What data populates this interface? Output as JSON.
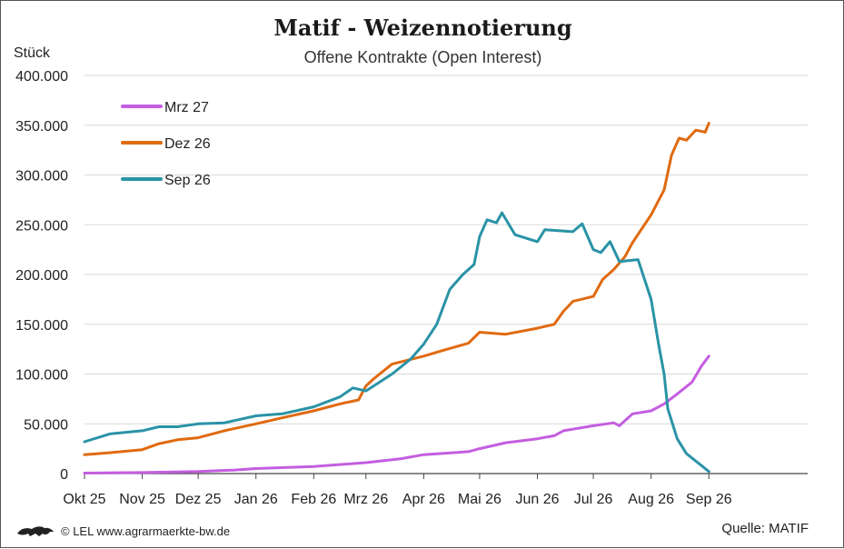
{
  "header": {
    "title": "Matif - Weizennotierung",
    "subtitle": "Offene Kontrakte (Open Interest)",
    "unit": "Stück"
  },
  "footer": {
    "copyright": "© LEL www.agrarmaerkte-bw.de",
    "source": "Quelle:  MATIF",
    "logo_icon": "lion-logo-icon"
  },
  "chart_data": {
    "type": "line",
    "x_type": "date",
    "x_range": [
      "2025-10-01",
      "2026-10-24"
    ],
    "x_ticks": [
      {
        "date": "2025-10-01",
        "label": "Okt 25"
      },
      {
        "date": "2025-11-01",
        "label": "Nov 25"
      },
      {
        "date": "2025-12-01",
        "label": "Dez 25"
      },
      {
        "date": "2026-01-01",
        "label": "Jan 26"
      },
      {
        "date": "2026-02-01",
        "label": "Feb 26"
      },
      {
        "date": "2026-03-01",
        "label": "Mrz 26"
      },
      {
        "date": "2026-04-01",
        "label": "Apr 26"
      },
      {
        "date": "2026-05-01",
        "label": "Mai 26"
      },
      {
        "date": "2026-06-01",
        "label": "Jun 26"
      },
      {
        "date": "2026-07-01",
        "label": "Jul 26"
      },
      {
        "date": "2026-08-01",
        "label": "Aug 26"
      },
      {
        "date": "2026-09-01",
        "label": "Sep 26"
      }
    ],
    "ylim": [
      0,
      400000
    ],
    "y_ticks": [
      {
        "value": 0,
        "label": "0"
      },
      {
        "value": 50000,
        "label": "50.000"
      },
      {
        "value": 100000,
        "label": "100.000"
      },
      {
        "value": 150000,
        "label": "150.000"
      },
      {
        "value": 200000,
        "label": "200.000"
      },
      {
        "value": 250000,
        "label": "250.000"
      },
      {
        "value": 300000,
        "label": "300.000"
      },
      {
        "value": 350000,
        "label": "350.000"
      },
      {
        "value": 400000,
        "label": "400.000"
      }
    ],
    "grid": "horizontal",
    "legend_position": "top-left",
    "series": [
      {
        "name": "Mrz 27",
        "color": "#c45ee0",
        "points": [
          [
            "2025-10-01",
            500
          ],
          [
            "2025-11-01",
            1000
          ],
          [
            "2025-12-01",
            2000
          ],
          [
            "2025-12-20",
            3500
          ],
          [
            "2026-01-01",
            5000
          ],
          [
            "2026-02-01",
            7000
          ],
          [
            "2026-03-01",
            11000
          ],
          [
            "2026-03-20",
            15000
          ],
          [
            "2026-04-01",
            19000
          ],
          [
            "2026-04-25",
            22000
          ],
          [
            "2026-05-01",
            25000
          ],
          [
            "2026-05-15",
            31000
          ],
          [
            "2026-06-01",
            35000
          ],
          [
            "2026-06-10",
            38000
          ],
          [
            "2026-06-15",
            43000
          ],
          [
            "2026-07-01",
            48000
          ],
          [
            "2026-07-12",
            51000
          ],
          [
            "2026-07-15",
            48000
          ],
          [
            "2026-07-22",
            60000
          ],
          [
            "2026-08-01",
            63000
          ],
          [
            "2026-08-08",
            70000
          ],
          [
            "2026-08-15",
            80000
          ],
          [
            "2026-08-23",
            92000
          ],
          [
            "2026-08-28",
            108000
          ],
          [
            "2026-09-01",
            118000
          ]
        ]
      },
      {
        "name": "Dez 26",
        "color": "#e06a10",
        "points": [
          [
            "2025-10-01",
            19000
          ],
          [
            "2025-10-15",
            21000
          ],
          [
            "2025-11-01",
            24000
          ],
          [
            "2025-11-10",
            30000
          ],
          [
            "2025-11-20",
            34000
          ],
          [
            "2025-12-01",
            36000
          ],
          [
            "2025-12-15",
            43000
          ],
          [
            "2026-01-01",
            50000
          ],
          [
            "2026-01-15",
            56000
          ],
          [
            "2026-02-01",
            63000
          ],
          [
            "2026-02-15",
            70000
          ],
          [
            "2026-02-25",
            74000
          ],
          [
            "2026-03-01",
            88000
          ],
          [
            "2026-03-05",
            95000
          ],
          [
            "2026-03-15",
            110000
          ],
          [
            "2026-04-01",
            118000
          ],
          [
            "2026-04-10",
            123000
          ],
          [
            "2026-04-25",
            131000
          ],
          [
            "2026-05-01",
            142000
          ],
          [
            "2026-05-15",
            140000
          ],
          [
            "2026-06-01",
            146000
          ],
          [
            "2026-06-10",
            150000
          ],
          [
            "2026-06-15",
            163000
          ],
          [
            "2026-06-20",
            173000
          ],
          [
            "2026-07-01",
            178000
          ],
          [
            "2026-07-06",
            195000
          ],
          [
            "2026-07-12",
            205000
          ],
          [
            "2026-07-18",
            218000
          ],
          [
            "2026-07-22",
            232000
          ],
          [
            "2026-08-01",
            260000
          ],
          [
            "2026-08-08",
            285000
          ],
          [
            "2026-08-12",
            320000
          ],
          [
            "2026-08-16",
            337000
          ],
          [
            "2026-08-20",
            335000
          ],
          [
            "2026-08-25",
            345000
          ],
          [
            "2026-08-30",
            343000
          ],
          [
            "2026-09-01",
            352000
          ]
        ]
      },
      {
        "name": "Sep 26",
        "color": "#2a93a6",
        "points": [
          [
            "2025-10-01",
            32000
          ],
          [
            "2025-10-15",
            40000
          ],
          [
            "2025-11-01",
            43000
          ],
          [
            "2025-11-10",
            47000
          ],
          [
            "2025-11-20",
            47000
          ],
          [
            "2025-12-01",
            50000
          ],
          [
            "2025-12-15",
            51000
          ],
          [
            "2026-01-01",
            58000
          ],
          [
            "2026-01-15",
            60000
          ],
          [
            "2026-02-01",
            67000
          ],
          [
            "2026-02-15",
            77000
          ],
          [
            "2026-02-22",
            86000
          ],
          [
            "2026-03-01",
            83000
          ],
          [
            "2026-03-15",
            100000
          ],
          [
            "2026-03-25",
            115000
          ],
          [
            "2026-04-01",
            130000
          ],
          [
            "2026-04-08",
            150000
          ],
          [
            "2026-04-15",
            185000
          ],
          [
            "2026-04-22",
            200000
          ],
          [
            "2026-04-28",
            210000
          ],
          [
            "2026-05-01",
            238000
          ],
          [
            "2026-05-05",
            255000
          ],
          [
            "2026-05-10",
            252000
          ],
          [
            "2026-05-13",
            262000
          ],
          [
            "2026-05-20",
            240000
          ],
          [
            "2026-06-01",
            233000
          ],
          [
            "2026-06-05",
            245000
          ],
          [
            "2026-06-20",
            243000
          ],
          [
            "2026-06-25",
            251000
          ],
          [
            "2026-07-01",
            225000
          ],
          [
            "2026-07-05",
            222000
          ],
          [
            "2026-07-10",
            233000
          ],
          [
            "2026-07-15",
            213000
          ],
          [
            "2026-07-25",
            215000
          ],
          [
            "2026-08-01",
            175000
          ],
          [
            "2026-08-05",
            130000
          ],
          [
            "2026-08-08",
            100000
          ],
          [
            "2026-08-10",
            65000
          ],
          [
            "2026-08-15",
            35000
          ],
          [
            "2026-08-20",
            20000
          ],
          [
            "2026-08-28",
            8000
          ],
          [
            "2026-09-01",
            2000
          ]
        ]
      }
    ]
  }
}
